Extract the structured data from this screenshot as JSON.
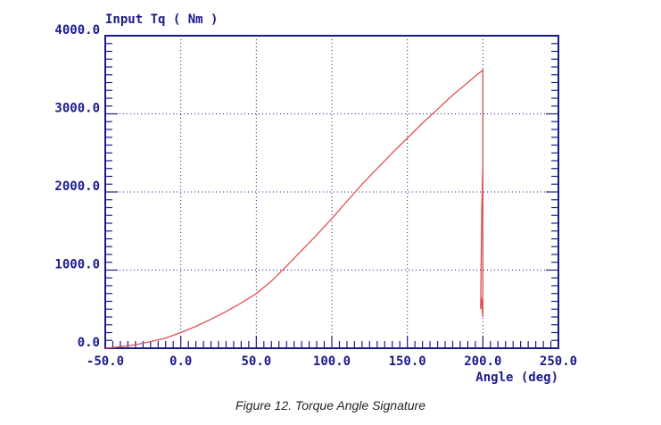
{
  "caption": "Figure 12. Torque Angle Signature",
  "chart_data": {
    "type": "line",
    "title": "",
    "xlabel": "Angle (deg)",
    "ylabel": "Input Tq ( Nm )",
    "xlim": [
      -50,
      250
    ],
    "ylim": [
      0,
      4000
    ],
    "x_ticks": [
      -50,
      0,
      50,
      100,
      150,
      200,
      250
    ],
    "x_tick_labels": [
      "-50.0",
      "0.0",
      "50.0",
      "100.0",
      "150.0",
      "200.0",
      "250.0"
    ],
    "y_ticks": [
      0,
      1000,
      2000,
      3000,
      4000
    ],
    "y_tick_labels": [
      "0.0",
      "1000.0",
      "2000.0",
      "3000.0",
      "4000.0"
    ],
    "grid": true,
    "colors": {
      "axis": "#1a1a8c",
      "grid": "#1a1a8c",
      "series": "#e05050"
    },
    "series": [
      {
        "x": [
          -50,
          -40,
          -30,
          -20,
          -10,
          0,
          10,
          20,
          30,
          40,
          50,
          60,
          70,
          80,
          90,
          100,
          110,
          120,
          130,
          140,
          150,
          160,
          170,
          180,
          190,
          196,
          200,
          200,
          200,
          199,
          198.5,
          199.3,
          200
        ],
        "y": [
          0,
          20,
          45,
          85,
          130,
          200,
          280,
          370,
          470,
          580,
          700,
          860,
          1050,
          1250,
          1450,
          1660,
          1880,
          2100,
          2300,
          2500,
          2690,
          2880,
          3060,
          3240,
          3400,
          3500,
          3560,
          3560,
          400,
          650,
          500,
          1800,
          2350
        ]
      }
    ]
  }
}
